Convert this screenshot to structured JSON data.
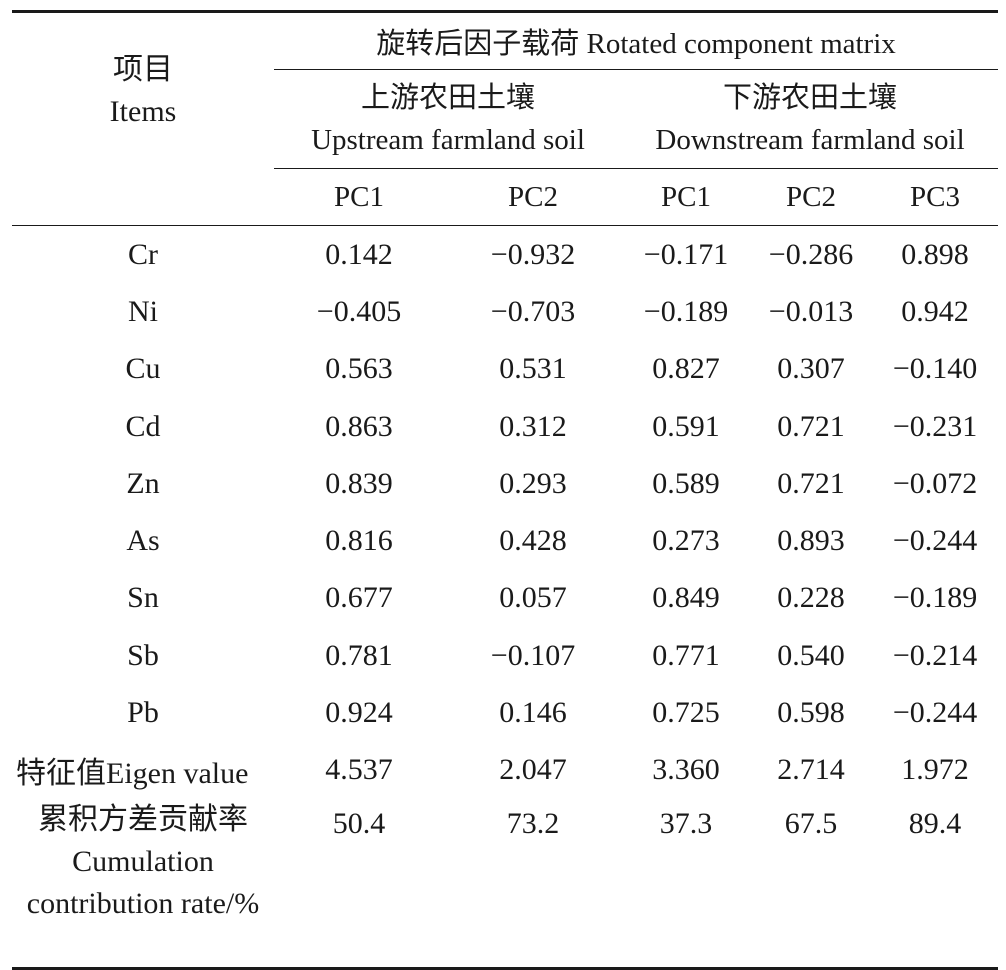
{
  "header": {
    "items_cn": "项目",
    "items_en": "Items",
    "rotated_title": "旋转后因子载荷 Rotated component matrix",
    "upstream_cn": "上游农田土壤",
    "upstream_en": "Upstream farmland soil",
    "downstream_cn": "下游农田土壤",
    "downstream_en": "Downstream farmland soil",
    "pc_labels": [
      "PC1",
      "PC2",
      "PC1",
      "PC2",
      "PC3"
    ]
  },
  "rows": [
    {
      "item": "Cr",
      "values": [
        "0.142",
        "−0.932",
        "−0.171",
        "−0.286",
        "0.898"
      ]
    },
    {
      "item": "Ni",
      "values": [
        "−0.405",
        "−0.703",
        "−0.189",
        "−0.013",
        "0.942"
      ]
    },
    {
      "item": "Cu",
      "values": [
        "0.563",
        "0.531",
        "0.827",
        "0.307",
        "−0.140"
      ]
    },
    {
      "item": "Cd",
      "values": [
        "0.863",
        "0.312",
        "0.591",
        "0.721",
        "−0.231"
      ]
    },
    {
      "item": "Zn",
      "values": [
        "0.839",
        "0.293",
        "0.589",
        "0.721",
        "−0.072"
      ]
    },
    {
      "item": "As",
      "values": [
        "0.816",
        "0.428",
        "0.273",
        "0.893",
        "−0.244"
      ]
    },
    {
      "item": "Sn",
      "values": [
        "0.677",
        "0.057",
        "0.849",
        "0.228",
        "−0.189"
      ]
    },
    {
      "item": "Sb",
      "values": [
        "0.781",
        "−0.107",
        "0.771",
        "0.540",
        "−0.214"
      ]
    },
    {
      "item": "Pb",
      "values": [
        "0.924",
        "0.146",
        "0.725",
        "0.598",
        "−0.244"
      ]
    }
  ],
  "eigen": {
    "label": "特征值Eigen value",
    "values": [
      "4.537",
      "2.047",
      "3.360",
      "2.714",
      "1.972"
    ]
  },
  "cumulation": {
    "label_cn": "累积方差贡献率",
    "label_en_1": "Cumulation",
    "label_en_2": "contribution rate/%",
    "values": [
      "50.4",
      "73.2",
      "37.3",
      "67.5",
      "89.4"
    ]
  }
}
